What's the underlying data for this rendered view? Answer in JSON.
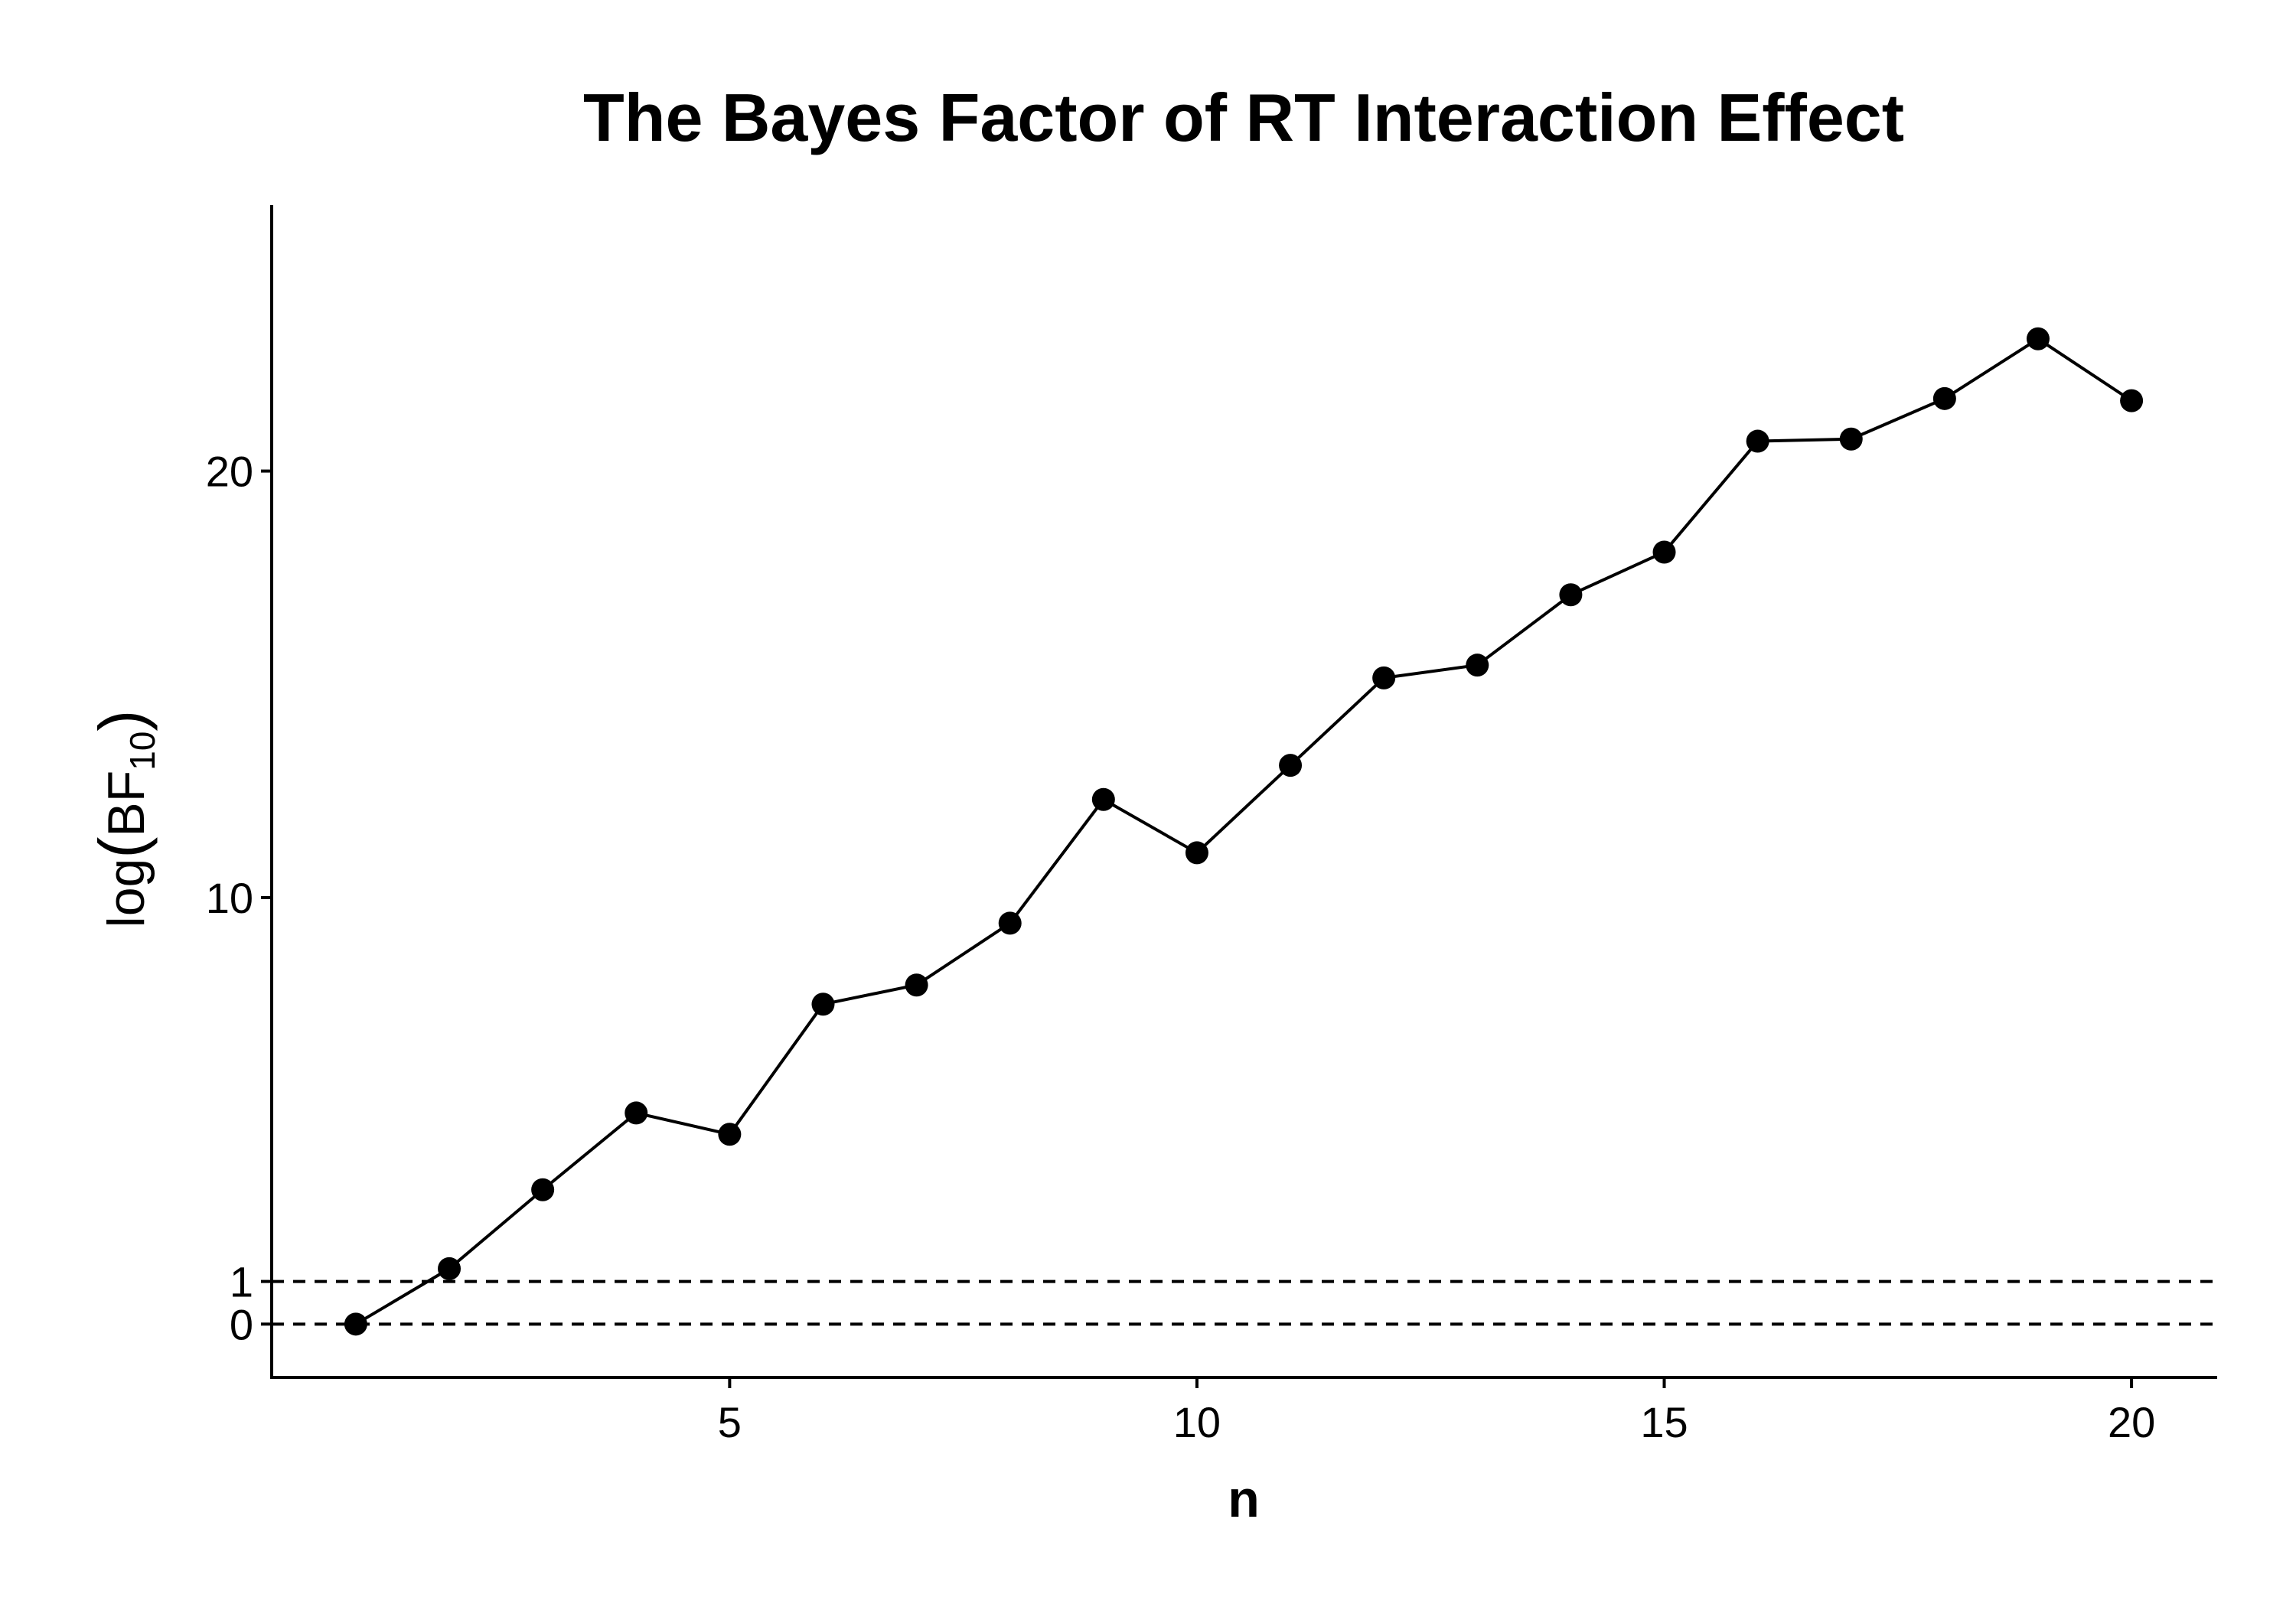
{
  "chart_data": {
    "type": "line",
    "title": "The Bayes Factor of RT Interaction Effect",
    "xlabel": "n",
    "ylabel": {
      "prefix": "log",
      "open": "(",
      "main": "BF",
      "subscript": "10",
      "close": ")"
    },
    "xlim": [
      0.1,
      20.9
    ],
    "ylim": [
      -1.25,
      26.2
    ],
    "xticks": [
      5,
      10,
      15,
      20
    ],
    "yticks": [
      0,
      1,
      10,
      20
    ],
    "reference_lines": [
      {
        "y": 0,
        "style": "dashed"
      },
      {
        "y": 1,
        "style": "dashed"
      }
    ],
    "series": [
      {
        "name": "log(BF10)",
        "color": "#000000",
        "x": [
          1,
          2,
          3,
          4,
          5,
          6,
          7,
          8,
          9,
          10,
          11,
          12,
          13,
          14,
          15,
          16,
          17,
          18,
          19,
          20
        ],
        "y": [
          0.0,
          1.3,
          3.15,
          4.95,
          4.45,
          7.5,
          7.95,
          9.4,
          12.3,
          11.05,
          13.1,
          15.15,
          15.45,
          17.1,
          18.1,
          20.7,
          20.75,
          21.7,
          23.1,
          21.65
        ]
      }
    ],
    "grid": false,
    "legend": "none"
  }
}
